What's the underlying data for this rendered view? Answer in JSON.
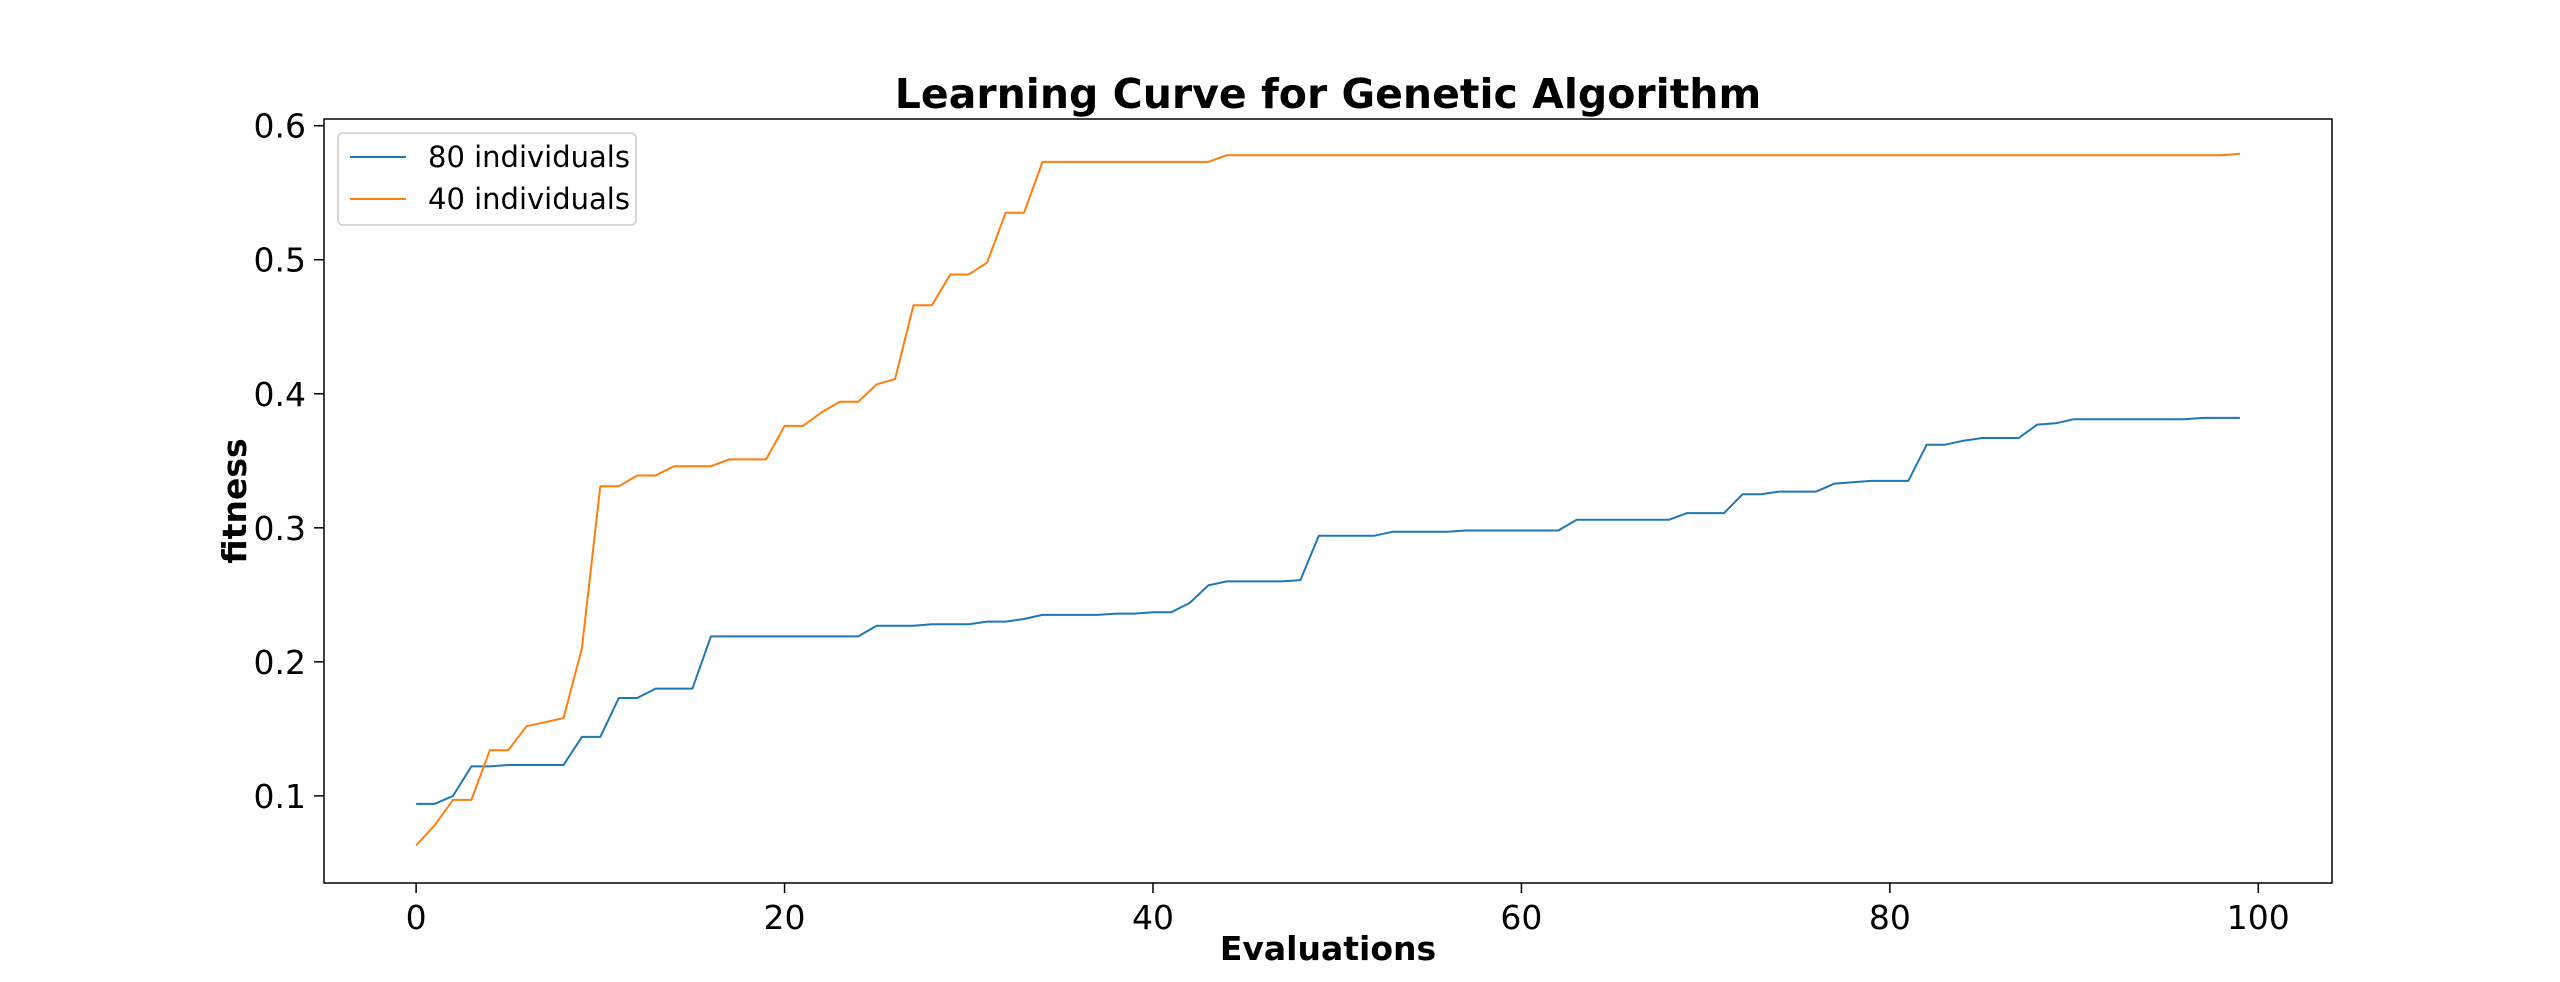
{
  "chart_data": {
    "type": "line",
    "title": "Learning Curve for Genetic Algorithm",
    "xlabel": "Evaluations",
    "ylabel": "fitness",
    "xlim": [
      -5,
      104
    ],
    "ylim": [
      0.035,
      0.605
    ],
    "xticks": [
      0,
      20,
      40,
      60,
      80,
      100
    ],
    "yticks": [
      0.1,
      0.2,
      0.3,
      0.4,
      0.5,
      0.6
    ],
    "xtick_labels": [
      "0",
      "20",
      "40",
      "60",
      "80",
      "100"
    ],
    "ytick_labels": [
      "0.1",
      "0.2",
      "0.3",
      "0.4",
      "0.5",
      "0.6"
    ],
    "grid": false,
    "legend_position": "top-left",
    "series": [
      {
        "name": "80 individuals",
        "color": "#1f77b4",
        "x": [
          0,
          1,
          2,
          3,
          4,
          5,
          6,
          7,
          8,
          9,
          10,
          11,
          12,
          13,
          14,
          15,
          16,
          17,
          18,
          19,
          20,
          21,
          22,
          23,
          24,
          25,
          26,
          27,
          28,
          29,
          30,
          31,
          32,
          33,
          34,
          35,
          36,
          37,
          38,
          39,
          40,
          41,
          42,
          43,
          44,
          45,
          46,
          47,
          48,
          49,
          50,
          51,
          52,
          53,
          54,
          55,
          56,
          57,
          58,
          59,
          60,
          61,
          62,
          63,
          64,
          65,
          66,
          67,
          68,
          69,
          70,
          71,
          72,
          73,
          74,
          75,
          76,
          77,
          78,
          79,
          80,
          81,
          82,
          83,
          84,
          85,
          86,
          87,
          88,
          89,
          90,
          91,
          92,
          93,
          94,
          95,
          96,
          97,
          98,
          99
        ],
        "y": [
          0.094,
          0.094,
          0.1,
          0.122,
          0.122,
          0.123,
          0.123,
          0.123,
          0.123,
          0.144,
          0.144,
          0.173,
          0.173,
          0.18,
          0.18,
          0.18,
          0.219,
          0.219,
          0.219,
          0.219,
          0.219,
          0.219,
          0.219,
          0.219,
          0.219,
          0.227,
          0.227,
          0.227,
          0.228,
          0.228,
          0.228,
          0.23,
          0.23,
          0.232,
          0.235,
          0.235,
          0.235,
          0.235,
          0.236,
          0.236,
          0.237,
          0.237,
          0.244,
          0.257,
          0.26,
          0.26,
          0.26,
          0.26,
          0.261,
          0.294,
          0.294,
          0.294,
          0.294,
          0.297,
          0.297,
          0.297,
          0.297,
          0.298,
          0.298,
          0.298,
          0.298,
          0.298,
          0.298,
          0.306,
          0.306,
          0.306,
          0.306,
          0.306,
          0.306,
          0.311,
          0.311,
          0.311,
          0.325,
          0.325,
          0.327,
          0.327,
          0.327,
          0.333,
          0.334,
          0.335,
          0.335,
          0.335,
          0.362,
          0.362,
          0.365,
          0.367,
          0.367,
          0.367,
          0.377,
          0.378,
          0.381,
          0.381,
          0.381,
          0.381,
          0.381,
          0.381,
          0.381,
          0.382,
          0.382,
          0.382
        ]
      },
      {
        "name": "40 individuals",
        "color": "#ff7f0e",
        "x": [
          0,
          1,
          2,
          3,
          4,
          5,
          6,
          7,
          8,
          9,
          10,
          11,
          12,
          13,
          14,
          15,
          16,
          17,
          18,
          19,
          20,
          21,
          22,
          23,
          24,
          25,
          26,
          27,
          28,
          29,
          30,
          31,
          32,
          33,
          34,
          35,
          36,
          37,
          38,
          39,
          40,
          41,
          42,
          43,
          44,
          45,
          46,
          47,
          48,
          49,
          50,
          51,
          52,
          53,
          54,
          55,
          56,
          57,
          58,
          59,
          60,
          61,
          62,
          63,
          64,
          65,
          66,
          67,
          68,
          69,
          70,
          71,
          72,
          73,
          74,
          75,
          76,
          77,
          78,
          79,
          80,
          81,
          82,
          83,
          84,
          85,
          86,
          87,
          88,
          89,
          90,
          91,
          92,
          93,
          94,
          95,
          96,
          97,
          98,
          99
        ],
        "y": [
          0.063,
          0.078,
          0.097,
          0.097,
          0.134,
          0.134,
          0.152,
          0.155,
          0.158,
          0.21,
          0.331,
          0.331,
          0.339,
          0.339,
          0.346,
          0.346,
          0.346,
          0.351,
          0.351,
          0.351,
          0.376,
          0.376,
          0.386,
          0.394,
          0.394,
          0.407,
          0.411,
          0.466,
          0.466,
          0.489,
          0.489,
          0.498,
          0.535,
          0.535,
          0.573,
          0.573,
          0.573,
          0.573,
          0.573,
          0.573,
          0.573,
          0.573,
          0.573,
          0.573,
          0.578,
          0.578,
          0.578,
          0.578,
          0.578,
          0.578,
          0.578,
          0.578,
          0.578,
          0.578,
          0.578,
          0.578,
          0.578,
          0.578,
          0.578,
          0.578,
          0.578,
          0.578,
          0.578,
          0.578,
          0.578,
          0.578,
          0.578,
          0.578,
          0.578,
          0.578,
          0.578,
          0.578,
          0.578,
          0.578,
          0.578,
          0.578,
          0.578,
          0.578,
          0.578,
          0.578,
          0.578,
          0.578,
          0.578,
          0.578,
          0.578,
          0.578,
          0.578,
          0.578,
          0.578,
          0.578,
          0.578,
          0.578,
          0.578,
          0.578,
          0.578,
          0.578,
          0.578,
          0.578,
          0.578,
          0.579
        ]
      }
    ]
  }
}
